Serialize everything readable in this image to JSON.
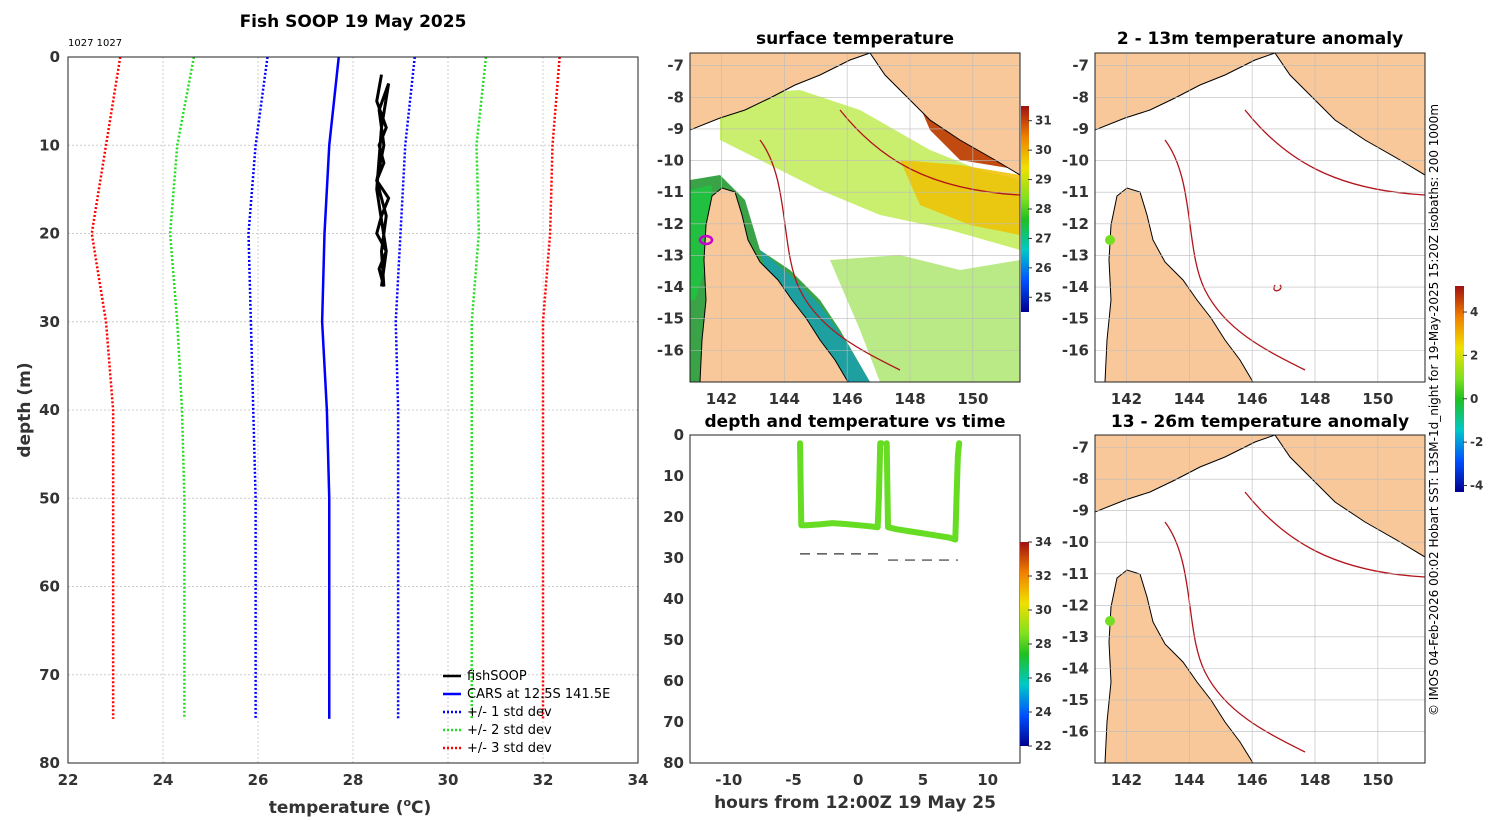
{
  "colors": {
    "land": "#f9c89a",
    "coast": "#000000",
    "isobath": "#b2141b",
    "grid": "#cccccc",
    "cars": "#0000ff",
    "std1": "#0000ff",
    "std2": "#22dd22",
    "std3": "#ff0000",
    "fish": "#000000",
    "marker": "#cc00cc",
    "fishdot": "#77dd22"
  },
  "chart_data": [
    {
      "id": "profile",
      "type": "line",
      "title": "Fish SOOP 19 May 2025",
      "annotation": "1027 1027",
      "xlabel": "temperature (oC)",
      "ylabel": "depth (m)",
      "xlim": [
        22,
        34
      ],
      "ylim": [
        0,
        80
      ],
      "xticks": [
        "22",
        "24",
        "26",
        "28",
        "30",
        "32",
        "34"
      ],
      "yticks": [
        "0",
        "10",
        "20",
        "30",
        "40",
        "50",
        "60",
        "70",
        "80"
      ],
      "depths": [
        0,
        10,
        20,
        30,
        40,
        50,
        60,
        70,
        75
      ],
      "series": [
        {
          "name": "CARS at 12.5S 141.5E",
          "style": "solid",
          "color": "#0000ff",
          "values": [
            27.7,
            27.5,
            27.4,
            27.35,
            27.45,
            27.5,
            27.5,
            27.5,
            27.5
          ]
        },
        {
          "name": "+/- 1 std dev",
          "style": "dotted",
          "color": "#0000ff",
          "values": [
            26.2,
            25.95,
            25.8,
            25.85,
            25.9,
            25.95,
            25.95,
            25.95,
            25.95
          ]
        },
        {
          "name": "+/- 1 std dev (upper)",
          "style": "dotted",
          "color": "#0000ff",
          "values": [
            29.3,
            29.1,
            29.0,
            28.9,
            28.95,
            28.95,
            28.95,
            28.95,
            28.95
          ]
        },
        {
          "name": "+/- 2 std dev",
          "style": "dotted",
          "color": "#22dd22",
          "values": [
            24.65,
            24.3,
            24.15,
            24.3,
            24.4,
            24.45,
            24.45,
            24.45,
            24.45
          ]
        },
        {
          "name": "+/- 2 std dev (upper)",
          "style": "dotted",
          "color": "#22dd22",
          "values": [
            30.8,
            30.6,
            30.65,
            30.5,
            30.5,
            30.5,
            30.5,
            30.5,
            30.5
          ]
        },
        {
          "name": "+/- 3 std dev",
          "style": "dotted",
          "color": "#ff0000",
          "values": [
            23.1,
            22.8,
            22.5,
            22.8,
            22.95,
            22.95,
            22.95,
            22.95,
            22.95
          ]
        },
        {
          "name": "+/- 3 std dev (upper)",
          "style": "dotted",
          "color": "#ff0000",
          "values": [
            32.35,
            32.2,
            32.15,
            32.0,
            32.0,
            32.0,
            32.0,
            32.0,
            32.0
          ]
        }
      ],
      "fish": {
        "name": "fishSOOP",
        "temps": [
          28.6,
          28.5,
          28.7,
          28.55,
          28.65,
          28.5,
          28.75,
          28.6,
          28.5,
          28.7,
          28.55,
          28.65,
          28.6,
          28.7,
          28.5,
          28.65,
          28.55,
          28.75,
          28.6,
          28.5,
          28.7,
          28.6
        ],
        "depths": [
          2,
          5,
          8,
          10,
          12,
          14,
          16,
          18,
          20,
          22,
          24,
          26,
          22,
          18,
          14,
          10,
          6,
          3,
          8,
          15,
          22,
          26
        ]
      },
      "legend": [
        "fishSOOP",
        "CARS at 12.5S 141.5E",
        "+/- 1 std dev",
        "+/- 2 std dev",
        "+/- 3 std dev"
      ]
    },
    {
      "id": "sst",
      "type": "heatmap",
      "title": "surface temperature",
      "xticks": [
        "142",
        "144",
        "146",
        "148",
        "150"
      ],
      "yticks": [
        "-7",
        "-8",
        "-9",
        "-10",
        "-11",
        "-12",
        "-13",
        "-14",
        "-15",
        "-16"
      ],
      "lonlim": [
        141,
        151.5
      ],
      "latlim": [
        -17,
        -6.6
      ],
      "colorbar": {
        "min": 24.5,
        "max": 31.5,
        "ticks": [
          "31",
          "30",
          "29",
          "28",
          "27",
          "26",
          "25"
        ]
      }
    },
    {
      "id": "depthtime",
      "type": "scatter",
      "title": "depth and temperature vs time",
      "xlabel": "hours from 12:00Z 19 May 25",
      "xlim": [
        -13,
        12.5
      ],
      "ylim": [
        0,
        80
      ],
      "xticks": [
        "-10",
        "-5",
        "0",
        "5",
        "10"
      ],
      "yticks": [
        "0",
        "10",
        "20",
        "30",
        "40",
        "50",
        "60",
        "70",
        "80"
      ],
      "seg1": {
        "hours": [
          -4.5,
          -4.4,
          -4,
          -3,
          -2,
          -1,
          0,
          1,
          1.5,
          1.6,
          1.7,
          1.8
        ],
        "depths": [
          2,
          22,
          22,
          21.8,
          21.5,
          21.7,
          22,
          22.3,
          22.5,
          15,
          2,
          2
        ]
      },
      "seg2": {
        "hours": [
          2.2,
          2.3,
          3,
          4,
          5,
          6,
          7,
          7.5,
          7.6,
          7.7,
          7.8
        ],
        "depths": [
          2,
          22.5,
          23,
          23.5,
          24,
          24.5,
          25,
          25.5,
          15,
          5,
          2
        ]
      },
      "bottom": [
        {
          "from": -4.5,
          "to": 1.6,
          "depth": 29
        },
        {
          "from": 2.3,
          "to": 7.7,
          "depth": 30.5
        }
      ],
      "colorbar": {
        "min": 22,
        "max": 34,
        "ticks": [
          "34",
          "32",
          "30",
          "28",
          "26",
          "24",
          "22"
        ]
      }
    },
    {
      "id": "anom1",
      "type": "heatmap",
      "title": "2 - 13m temperature anomaly",
      "xticks": [
        "142",
        "144",
        "146",
        "148",
        "150"
      ],
      "yticks": [
        "-7",
        "-8",
        "-9",
        "-10",
        "-11",
        "-12",
        "-13",
        "-14",
        "-15",
        "-16"
      ],
      "colorbar": {
        "min": -4.3,
        "max": 5.2,
        "ticks": [
          "4",
          "2",
          "0",
          "-2",
          "-4"
        ]
      }
    },
    {
      "id": "anom2",
      "type": "heatmap",
      "title": "13 - 26m temperature anomaly",
      "xticks": [
        "142",
        "144",
        "146",
        "148",
        "150"
      ],
      "yticks": [
        "-7",
        "-8",
        "-9",
        "-10",
        "-11",
        "-12",
        "-13",
        "-14",
        "-15",
        "-16"
      ]
    }
  ],
  "side_note": "© IMOS 04-Feb-2026 00:02 Hobart SST: L3SM-1d_night for 19-May-2025 15:20Z isobaths: 200  1000m"
}
